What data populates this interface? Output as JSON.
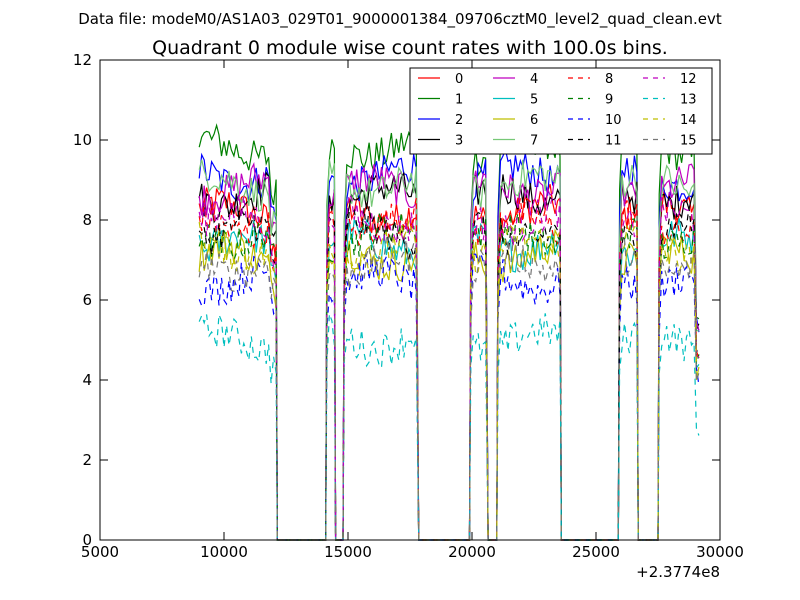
{
  "chart_data": {
    "type": "line",
    "suptitle": "Data file: modeM0/AS1A03_029T01_9000001384_09706cztM0_level2_quad_clean.evt",
    "title": "Quadrant 0 module wise count rates with 100.0s bins.",
    "xlabel": "",
    "ylabel": "",
    "xlim": [
      5000,
      30000
    ],
    "ylim": [
      0,
      12
    ],
    "xticks": [
      5000,
      10000,
      15000,
      20000,
      25000,
      30000
    ],
    "xtick_labels": [
      "5000",
      "10000",
      "15000",
      "20000",
      "25000",
      "30000"
    ],
    "yticks": [
      0,
      2,
      4,
      6,
      8,
      10,
      12
    ],
    "ytick_labels": [
      "0",
      "2",
      "4",
      "6",
      "8",
      "10",
      "12"
    ],
    "x_offset_label": "+2.3774e8",
    "bin_width_s": 100,
    "segments": [
      {
        "start": 9000,
        "end": 12100
      },
      {
        "start": 14150,
        "end": 14450
      },
      {
        "start": 14850,
        "end": 17800
      },
      {
        "start": 19950,
        "end": 20600
      },
      {
        "start": 21050,
        "end": 23550
      },
      {
        "start": 25950,
        "end": 26650
      },
      {
        "start": 27550,
        "end": 29150
      }
    ],
    "legend_position": "top-right",
    "legend_columns": 4,
    "series": [
      {
        "name": "0",
        "level": 8.2,
        "color": "#ff0000",
        "dashed": false
      },
      {
        "name": "1",
        "level": 9.8,
        "color": "#008000",
        "dashed": false
      },
      {
        "name": "2",
        "level": 9.1,
        "color": "#0000ff",
        "dashed": false
      },
      {
        "name": "3",
        "level": 8.6,
        "color": "#000000",
        "dashed": false
      },
      {
        "name": "4",
        "level": 8.8,
        "color": "#bf00bf",
        "dashed": false
      },
      {
        "name": "5",
        "level": 7.4,
        "color": "#00bfbf",
        "dashed": false
      },
      {
        "name": "6",
        "level": 7.1,
        "color": "#bfbf00",
        "dashed": false
      },
      {
        "name": "7",
        "level": 8.9,
        "color": "#77c877",
        "dashed": false
      },
      {
        "name": "8",
        "level": 7.9,
        "color": "#ff0000",
        "dashed": true
      },
      {
        "name": "9",
        "level": 7.6,
        "color": "#008000",
        "dashed": true
      },
      {
        "name": "10",
        "level": 6.5,
        "color": "#0000ff",
        "dashed": true
      },
      {
        "name": "11",
        "level": 7.7,
        "color": "#000000",
        "dashed": true
      },
      {
        "name": "12",
        "level": 8.0,
        "color": "#bf00bf",
        "dashed": true
      },
      {
        "name": "13",
        "level": 5.0,
        "color": "#00bfbf",
        "dashed": true
      },
      {
        "name": "14",
        "level": 7.3,
        "color": "#bfbf00",
        "dashed": true
      },
      {
        "name": "15",
        "level": 6.9,
        "color": "#777777",
        "dashed": true
      }
    ]
  }
}
